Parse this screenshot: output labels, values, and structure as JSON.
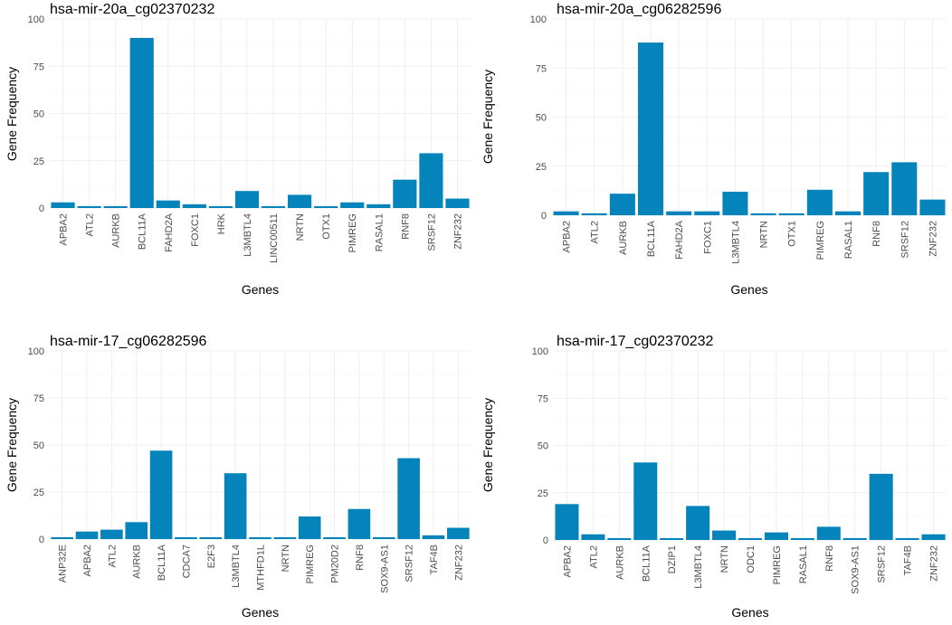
{
  "chart_data": [
    {
      "type": "bar",
      "title": "hsa-mir-20a_cg02370232",
      "xlabel": "Genes",
      "ylabel": "Gene Frequency",
      "ylim": [
        0,
        100
      ],
      "yticks": [
        0,
        25,
        50,
        75,
        100
      ],
      "bar_color": "#0584bb",
      "categories": [
        "APBA2",
        "ATL2",
        "AURKB",
        "BCL11A",
        "FAHD2A",
        "FOXC1",
        "HRK",
        "L3MBTL4",
        "LINC00511",
        "NRTN",
        "OTX1",
        "PIMREG",
        "RASAL1",
        "RNF8",
        "SRSF12",
        "ZNF232"
      ],
      "values": [
        3,
        1,
        1,
        90,
        4,
        2,
        1,
        9,
        1,
        7,
        1,
        3,
        2,
        15,
        29,
        5
      ]
    },
    {
      "type": "bar",
      "title": "hsa-mir-20a_cg06282596",
      "xlabel": "Genes",
      "ylabel": "Gene Frequency",
      "ylim": [
        0,
        100
      ],
      "yticks": [
        0,
        25,
        50,
        75,
        100
      ],
      "bar_color": "#0584bb",
      "categories": [
        "APBA2",
        "ATL2",
        "AURKB",
        "BCL11A",
        "FAHD2A",
        "FOXC1",
        "L3MBTL4",
        "NRTN",
        "OTX1",
        "PIMREG",
        "RASAL1",
        "RNF8",
        "SRSF12",
        "ZNF232"
      ],
      "values": [
        2,
        1,
        11,
        88,
        2,
        2,
        12,
        1,
        1,
        13,
        2,
        22,
        27,
        8
      ]
    },
    {
      "type": "bar",
      "title": "hsa-mir-17_cg06282596",
      "xlabel": "Genes",
      "ylabel": "Gene Frequency",
      "ylim": [
        0,
        100
      ],
      "yticks": [
        0,
        25,
        50,
        75,
        100
      ],
      "bar_color": "#0584bb",
      "categories": [
        "ANP32E",
        "APBA2",
        "ATL2",
        "AURKB",
        "BCL11A",
        "CDCA7",
        "E2F3",
        "L3MBTL4",
        "MTHFD1L",
        "NRTN",
        "PIMREG",
        "PM20D2",
        "RNF8",
        "SOX9-AS1",
        "SRSF12",
        "TAF4B",
        "ZNF232"
      ],
      "values": [
        1,
        4,
        5,
        9,
        47,
        1,
        1,
        35,
        1,
        1,
        12,
        1,
        16,
        1,
        43,
        2,
        6
      ]
    },
    {
      "type": "bar",
      "title": "hsa-mir-17_cg02370232",
      "xlabel": "Genes",
      "ylabel": "Gene Frequency",
      "ylim": [
        0,
        100
      ],
      "yticks": [
        0,
        25,
        50,
        75,
        100
      ],
      "bar_color": "#0584bb",
      "categories": [
        "APBA2",
        "ATL2",
        "AURKB",
        "BCL11A",
        "DZIP1",
        "L3MBTL4",
        "NRTN",
        "ODC1",
        "PIMREG",
        "RASAL1",
        "RNF8",
        "SOX9-AS1",
        "SRSF12",
        "TAF4B",
        "ZNF232"
      ],
      "values": [
        19,
        3,
        1,
        41,
        1,
        18,
        5,
        1,
        4,
        1,
        7,
        1,
        35,
        1,
        3
      ]
    }
  ]
}
